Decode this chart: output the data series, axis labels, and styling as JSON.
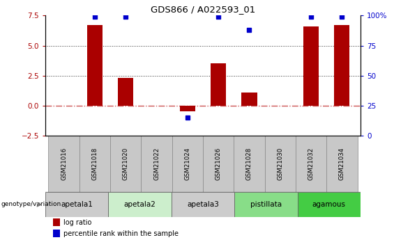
{
  "title": "GDS866 / A022593_01",
  "samples": [
    "GSM21016",
    "GSM21018",
    "GSM21020",
    "GSM21022",
    "GSM21024",
    "GSM21026",
    "GSM21028",
    "GSM21030",
    "GSM21032",
    "GSM21034"
  ],
  "log_ratio": [
    0.0,
    6.7,
    2.3,
    0.0,
    -0.5,
    3.5,
    1.1,
    0.0,
    6.6,
    6.7
  ],
  "percentile_rank": [
    null,
    99,
    99,
    null,
    15,
    99,
    88,
    null,
    99,
    99
  ],
  "ylim_left": [
    -2.5,
    7.5
  ],
  "ylim_right": [
    0,
    100
  ],
  "yticks_left": [
    -2.5,
    0,
    2.5,
    5,
    7.5
  ],
  "yticks_right": [
    0,
    25,
    50,
    75,
    100
  ],
  "ytick_labels_right": [
    "0",
    "25",
    "50",
    "75",
    "100%"
  ],
  "bar_color": "#AA0000",
  "dot_color": "#0000CC",
  "zero_line_color": "#CC5555",
  "hline_color": "#333333",
  "groups": [
    {
      "label": "apetala1",
      "start": 0,
      "end": 2,
      "color": "#CCCCCC"
    },
    {
      "label": "apetala2",
      "start": 2,
      "end": 4,
      "color": "#CCEECC"
    },
    {
      "label": "apetala3",
      "start": 4,
      "end": 6,
      "color": "#CCCCCC"
    },
    {
      "label": "pistillata",
      "start": 6,
      "end": 8,
      "color": "#88DD88"
    },
    {
      "label": "agamous",
      "start": 8,
      "end": 10,
      "color": "#44CC44"
    }
  ],
  "legend_items": [
    {
      "label": "log ratio",
      "color": "#AA0000"
    },
    {
      "label": "percentile rank within the sample",
      "color": "#0000CC"
    }
  ],
  "annotation_label": "genotype/variation",
  "sample_box_color": "#C8C8C8",
  "sample_box_edge": "#888888"
}
